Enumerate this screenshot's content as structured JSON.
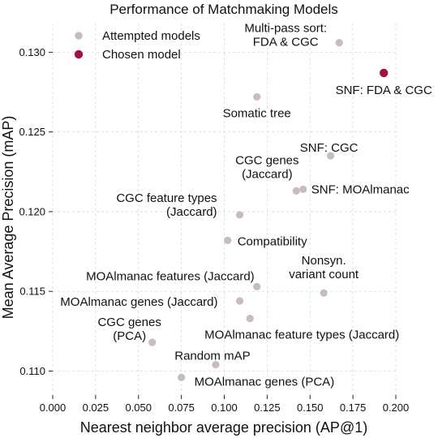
{
  "chart_data": {
    "type": "scatter",
    "title": "Performance of Matchmaking Models",
    "xlabel": "Nearest neighbor average precision (AP@1)",
    "ylabel": "Mean Average Precision (mAP)",
    "xlim": [
      0.0,
      0.2
    ],
    "ylim": [
      0.1085,
      0.1318
    ],
    "xticks": [
      "0.000",
      "0.025",
      "0.050",
      "0.075",
      "0.100",
      "0.125",
      "0.150",
      "0.175",
      "0.200"
    ],
    "yticks": [
      "0.110",
      "0.115",
      "0.120",
      "0.125",
      "0.130"
    ],
    "grid": true,
    "legend_position": "top-left",
    "series": [
      {
        "name": "Attempted models",
        "color": "#c8bcbc",
        "points": [
          {
            "label": "Multi-pass sort:\nFDA & CGC",
            "x": 0.167,
            "y": 0.1306
          },
          {
            "label": "Somatic tree",
            "x": 0.119,
            "y": 0.1272
          },
          {
            "label": "SNF: CGC",
            "x": 0.162,
            "y": 0.1235
          },
          {
            "label": "CGC genes\n(Jaccard)",
            "x": 0.142,
            "y": 0.1213
          },
          {
            "label": "SNF: MOAlmanac",
            "x": 0.146,
            "y": 0.1214
          },
          {
            "label": "CGC feature types\n(Jaccard)",
            "x": 0.109,
            "y": 0.1198
          },
          {
            "label": "Compatibility",
            "x": 0.102,
            "y": 0.1182
          },
          {
            "label": "MOAlmanac features (Jaccard)",
            "x": 0.119,
            "y": 0.1153
          },
          {
            "label": "Nonsyn.\nvariant count",
            "x": 0.158,
            "y": 0.1149
          },
          {
            "label": "MOAlmanac genes (Jaccard)",
            "x": 0.109,
            "y": 0.1144
          },
          {
            "label": "MOAlmanac feature types (Jaccard)",
            "x": 0.115,
            "y": 0.1133
          },
          {
            "label": "CGC genes\n(PCA)",
            "x": 0.058,
            "y": 0.1118
          },
          {
            "label": "Random mAP",
            "x": 0.095,
            "y": 0.1104
          },
          {
            "label": "MOAlmanac genes (PCA)",
            "x": 0.075,
            "y": 0.1096
          }
        ]
      },
      {
        "name": "Chosen model",
        "color": "#a3123f",
        "points": [
          {
            "label": "SNF: FDA & CGC",
            "x": 0.193,
            "y": 0.1287
          }
        ]
      }
    ]
  }
}
